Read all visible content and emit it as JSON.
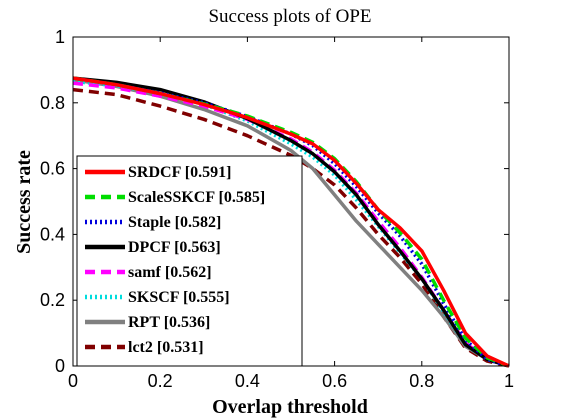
{
  "chart_data": {
    "type": "line",
    "title": "Success plots of OPE",
    "xlabel": "Overlap threshold",
    "ylabel": "Success rate",
    "xlim": [
      0,
      1
    ],
    "ylim": [
      0,
      1
    ],
    "xticks": [
      "0",
      "0.2",
      "0.4",
      "0.6",
      "0.8",
      "1"
    ],
    "yticks": [
      "0",
      "0.2",
      "0.4",
      "0.6",
      "0.8",
      "1"
    ],
    "legend_position": "bottom-left",
    "x": [
      0,
      0.1,
      0.2,
      0.3,
      0.4,
      0.5,
      0.55,
      0.6,
      0.65,
      0.7,
      0.75,
      0.8,
      0.85,
      0.9,
      0.95,
      1.0
    ],
    "series": [
      {
        "name": "SRDCF [0.591]",
        "color": "#ff0000",
        "style": "solid",
        "values": [
          0.875,
          0.855,
          0.828,
          0.795,
          0.755,
          0.705,
          0.675,
          0.625,
          0.555,
          0.475,
          0.42,
          0.35,
          0.23,
          0.1,
          0.03,
          0.0
        ]
      },
      {
        "name": "ScaleSSKCF [0.585]",
        "color": "#00dd00",
        "style": "dashed",
        "values": [
          0.875,
          0.855,
          0.828,
          0.797,
          0.76,
          0.71,
          0.68,
          0.63,
          0.56,
          0.475,
          0.405,
          0.325,
          0.2,
          0.085,
          0.025,
          0.0
        ]
      },
      {
        "name": "Staple [0.582]",
        "color": "#0000dd",
        "style": "dotted",
        "values": [
          0.875,
          0.855,
          0.83,
          0.8,
          0.758,
          0.705,
          0.67,
          0.615,
          0.545,
          0.465,
          0.395,
          0.31,
          0.19,
          0.08,
          0.02,
          0.0
        ]
      },
      {
        "name": "DPCF [0.563]",
        "color": "#000000",
        "style": "solid",
        "values": [
          0.875,
          0.862,
          0.84,
          0.803,
          0.752,
          0.685,
          0.645,
          0.59,
          0.52,
          0.43,
          0.35,
          0.265,
          0.17,
          0.065,
          0.02,
          0.0
        ]
      },
      {
        "name": "samf [0.562]",
        "color": "#ff00ff",
        "style": "dashed",
        "values": [
          0.86,
          0.845,
          0.82,
          0.79,
          0.75,
          0.69,
          0.65,
          0.595,
          0.525,
          0.44,
          0.36,
          0.27,
          0.17,
          0.07,
          0.02,
          0.0
        ]
      },
      {
        "name": "SKSCF [0.555]",
        "color": "#00dddd",
        "style": "dotted",
        "values": [
          0.865,
          0.852,
          0.828,
          0.795,
          0.745,
          0.675,
          0.635,
          0.58,
          0.505,
          0.425,
          0.345,
          0.265,
          0.165,
          0.065,
          0.02,
          0.0
        ]
      },
      {
        "name": "RPT [0.536]",
        "color": "#808080",
        "style": "solid",
        "values": [
          0.87,
          0.85,
          0.82,
          0.78,
          0.73,
          0.655,
          0.6,
          0.52,
          0.44,
          0.37,
          0.3,
          0.23,
          0.15,
          0.06,
          0.02,
          0.0
        ]
      },
      {
        "name": "lct2 [0.531]",
        "color": "#800000",
        "style": "dashed",
        "values": [
          0.84,
          0.825,
          0.79,
          0.75,
          0.7,
          0.64,
          0.6,
          0.55,
          0.48,
          0.4,
          0.33,
          0.25,
          0.15,
          0.055,
          0.015,
          0.0
        ]
      }
    ]
  }
}
